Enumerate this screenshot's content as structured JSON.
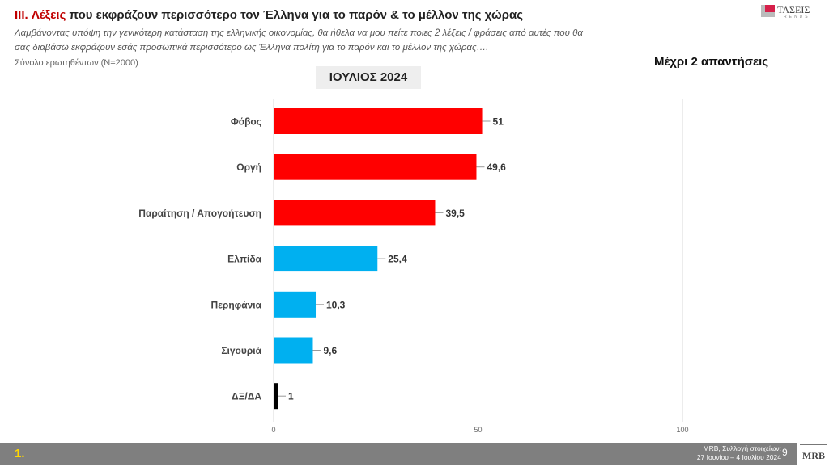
{
  "header": {
    "title_prefix": "III. Λέξεις",
    "title_rest": " που εκφράζουν περισσότερο τον Έλληνα για το παρόν & το μέλλον της χώρας",
    "question_line1": "Λαμβάνοντας υπόψη την γενικότερη κατάσταση της ελληνικής οικονομίας, θα ήθελα να μου πείτε ποιες 2  λέξεις / φράσεις από αυτές που θα",
    "question_line2": "σας διαβάσω εκφράζουν εσάς προσωπικά περισσότερο ως Έλληνα πολίτη για το παρόν και το μέλλον της χώρας….",
    "base": "Σύνολο ερωτηθέντων (N=2000)",
    "logo_text": "ΤΑΣΕΙΣ",
    "logo_sub": "TRENDS"
  },
  "period": "ΙΟΥΛΙΟΣ 2024",
  "note": "Μέχρι 2 απαντήσεις",
  "footer": {
    "slide_marker": "1.",
    "source_line1": "MRB, Συλλογή στοιχείων:",
    "source_line2": "27 Ιουνίου – 4 Ιουλίου 2024",
    "page": "9",
    "logo": "MRB"
  },
  "colors": {
    "negative": "#ff0000",
    "positive": "#00b0f0",
    "dk": "#000000"
  },
  "chart_data": {
    "type": "bar",
    "orientation": "horizontal",
    "categories": [
      "Φόβος",
      "Οργή",
      "Παραίτηση / Απογοήτευση",
      "Ελπίδα",
      "Περηφάνια",
      "Σιγουριά",
      "ΔΞ/ΔΑ"
    ],
    "values": [
      51,
      49.6,
      39.5,
      25.4,
      10.3,
      9.6,
      1
    ],
    "value_labels": [
      "51",
      "49,6",
      "39,5",
      "25,4",
      "10,3",
      "9,6",
      "1"
    ],
    "color_groups": [
      "negative",
      "negative",
      "negative",
      "positive",
      "positive",
      "positive",
      "dk"
    ],
    "xlim": [
      0,
      100
    ],
    "xticks": [
      "0",
      "50",
      "100"
    ],
    "grid": true
  }
}
